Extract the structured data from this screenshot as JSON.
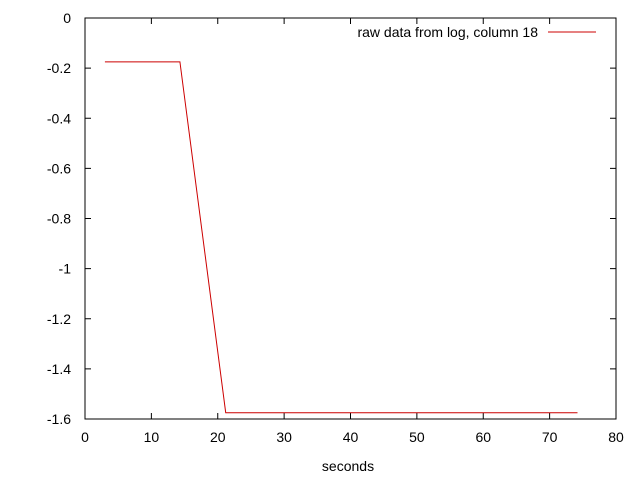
{
  "chart_data": {
    "type": "line",
    "title": "",
    "xlabel": "seconds",
    "ylabel": "",
    "xlim": [
      0,
      80
    ],
    "ylim": [
      -1.6,
      0
    ],
    "xticks": [
      0,
      10,
      20,
      30,
      40,
      50,
      60,
      70,
      80
    ],
    "yticks": [
      0,
      -0.2,
      -0.4,
      -0.6,
      -0.8,
      -1,
      -1.2,
      -1.4,
      -1.6
    ],
    "grid": false,
    "legend_position": "top-right",
    "series": [
      {
        "name": "raw data from log, column 18",
        "color": "#cc0000",
        "x": [
          3,
          14.3,
          21.2,
          74.2
        ],
        "y": [
          -0.175,
          -0.175,
          -1.575,
          -1.575
        ]
      }
    ]
  }
}
